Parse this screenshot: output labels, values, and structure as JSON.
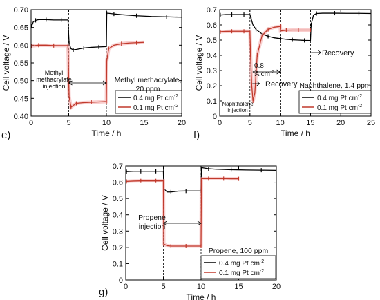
{
  "chart_data": [
    {
      "id": "e",
      "type": "line",
      "panel_label": "e)",
      "xlabel": "Time / h",
      "ylabel": "Cell voltage / V",
      "xlim": [
        0,
        20
      ],
      "ylim": [
        0.4,
        0.7
      ],
      "xticks": [
        0,
        5,
        10,
        15,
        20
      ],
      "yticks": [
        0.4,
        0.45,
        0.5,
        0.55,
        0.6,
        0.65,
        0.7
      ],
      "ytick_labels": [
        "0.40",
        "0.45",
        "0.50",
        "0.55",
        "0.60",
        "0.65",
        "0.70"
      ],
      "xtick_labels": [
        "0",
        "5",
        "10",
        "15",
        "20"
      ],
      "markers_x": [
        5,
        10
      ],
      "annotations": [
        "Methyl",
        "methacrylate",
        "injection",
        "Methyl methacrylate,",
        "20 ppm"
      ],
      "legend": [
        "0.4 mg Pt cm",
        "0.1 mg Pt cm"
      ],
      "legend_sup": "-2",
      "series": [
        {
          "name": "0.4 mg Pt cm-2",
          "color": "#000000",
          "x": [
            0.1,
            0.3,
            0.6,
            1,
            2,
            3,
            4,
            4.9,
            5.05,
            5.3,
            5.6,
            6,
            7,
            8,
            9,
            10,
            10.05,
            10.2,
            11,
            12,
            14,
            16,
            18,
            20
          ],
          "y": [
            0.655,
            0.666,
            0.67,
            0.672,
            0.672,
            0.671,
            0.671,
            0.671,
            0.605,
            0.59,
            0.587,
            0.588,
            0.592,
            0.594,
            0.595,
            0.596,
            0.69,
            0.69,
            0.688,
            0.686,
            0.683,
            0.681,
            0.68,
            0.679
          ]
        },
        {
          "name": "0.1 mg Pt cm-2",
          "color": "#c0392b",
          "x": [
            0.1,
            0.5,
            1,
            2,
            3,
            4,
            4.9,
            5.05,
            5.3,
            5.6,
            6,
            7,
            8,
            9,
            10,
            10.05,
            10.3,
            11,
            12,
            13,
            14,
            15
          ],
          "y": [
            0.598,
            0.599,
            0.6,
            0.6,
            0.599,
            0.599,
            0.599,
            0.455,
            0.425,
            0.43,
            0.436,
            0.438,
            0.439,
            0.44,
            0.441,
            0.555,
            0.59,
            0.6,
            0.604,
            0.606,
            0.607,
            0.608
          ]
        }
      ]
    },
    {
      "id": "f",
      "type": "line",
      "panel_label": "f)",
      "xlabel": "Time / h",
      "ylabel": "Cell voltage / V",
      "xlim": [
        0,
        25
      ],
      "ylim": [
        0,
        0.7
      ],
      "xticks": [
        0,
        5,
        10,
        15,
        20,
        25
      ],
      "yticks": [
        0,
        0.1,
        0.2,
        0.3,
        0.4,
        0.5,
        0.6,
        0.7
      ],
      "ytick_labels": [
        "0",
        "0.1",
        "0.2",
        "0.3",
        "0.4",
        "0.5",
        "0.6",
        "0.7"
      ],
      "xtick_labels": [
        "0",
        "5",
        "10",
        "15",
        "20",
        "25"
      ],
      "markers_x": [
        5,
        10,
        15
      ],
      "annotations": [
        "Naphthalene",
        "injection",
        "0.8",
        "A cm",
        "Recovery",
        "Recovery",
        "Naphthalene, 1.4 ppm"
      ],
      "annotation_sup": "-2",
      "legend": [
        "0.4 mg Pt cm",
        "0.1 mg Pt cm"
      ],
      "legend_sup": "-2",
      "series": [
        {
          "name": "0.4 mg Pt cm-2",
          "color": "#000000",
          "x": [
            0.1,
            1,
            2,
            3,
            4,
            5,
            5.2,
            5.5,
            6,
            7,
            8,
            9,
            10,
            11,
            12,
            13,
            14,
            15,
            15.1,
            15.5,
            16,
            17,
            19,
            21,
            23,
            25
          ],
          "y": [
            0.665,
            0.668,
            0.668,
            0.668,
            0.668,
            0.668,
            0.64,
            0.6,
            0.57,
            0.54,
            0.525,
            0.515,
            0.51,
            0.505,
            0.502,
            0.5,
            0.498,
            0.497,
            0.6,
            0.665,
            0.675,
            0.677,
            0.677,
            0.676,
            0.676,
            0.675
          ]
        },
        {
          "name": "0.1 mg Pt cm-2",
          "color": "#c0392b",
          "x": [
            0.1,
            1,
            2,
            3,
            4,
            5,
            5.1,
            5.3,
            5.5,
            5.8,
            6.2,
            7,
            8,
            9,
            10,
            10.05,
            11,
            12,
            13,
            14,
            15
          ],
          "y": [
            0.555,
            0.557,
            0.558,
            0.558,
            0.558,
            0.558,
            0.4,
            0.2,
            0.1,
            0.15,
            0.4,
            0.53,
            0.57,
            0.585,
            0.59,
            0.56,
            0.565,
            0.566,
            0.566,
            0.566,
            0.566
          ]
        }
      ]
    },
    {
      "id": "g",
      "type": "line",
      "panel_label": "g)",
      "xlabel": "Time / h",
      "ylabel": "Cell voltage / V",
      "xlim": [
        0,
        20
      ],
      "ylim": [
        0,
        0.7
      ],
      "xticks": [
        0,
        5,
        10,
        15,
        20
      ],
      "yticks": [
        0,
        0.1,
        0.2,
        0.3,
        0.4,
        0.5,
        0.6,
        0.7
      ],
      "ytick_labels": [
        "0",
        "0.1",
        "0.2",
        "0.3",
        "0.4",
        "0.5",
        "0.6",
        "0.7"
      ],
      "xtick_labels": [
        "0",
        "5",
        "10",
        "15",
        "20"
      ],
      "markers_x": [
        5,
        10
      ],
      "annotations": [
        "Propene",
        "injection",
        "Propene, 100 ppm"
      ],
      "legend": [
        "0.4 mg Pt cm",
        "0.1 mg Pt cm"
      ],
      "legend_sup": "-2",
      "series": [
        {
          "name": "0.4 mg Pt cm-2",
          "color": "#000000",
          "x": [
            0.1,
            1,
            2,
            3,
            4,
            5,
            5.05,
            5.5,
            6,
            7,
            8,
            9,
            10,
            10.05,
            11,
            12,
            14,
            16,
            18,
            20
          ],
          "y": [
            0.665,
            0.667,
            0.667,
            0.667,
            0.667,
            0.667,
            0.56,
            0.54,
            0.54,
            0.545,
            0.546,
            0.546,
            0.546,
            0.69,
            0.683,
            0.68,
            0.677,
            0.675,
            0.674,
            0.673
          ]
        },
        {
          "name": "0.1 mg Pt cm-2",
          "color": "#c0392b",
          "x": [
            0.1,
            1,
            2,
            3,
            4,
            5,
            5.05,
            5.5,
            6,
            7,
            8,
            9,
            10,
            10.05,
            11,
            12,
            13,
            14,
            15
          ],
          "y": [
            0.605,
            0.607,
            0.608,
            0.608,
            0.608,
            0.608,
            0.22,
            0.21,
            0.208,
            0.208,
            0.208,
            0.208,
            0.208,
            0.622,
            0.622,
            0.622,
            0.622,
            0.621,
            0.621
          ]
        }
      ]
    }
  ]
}
